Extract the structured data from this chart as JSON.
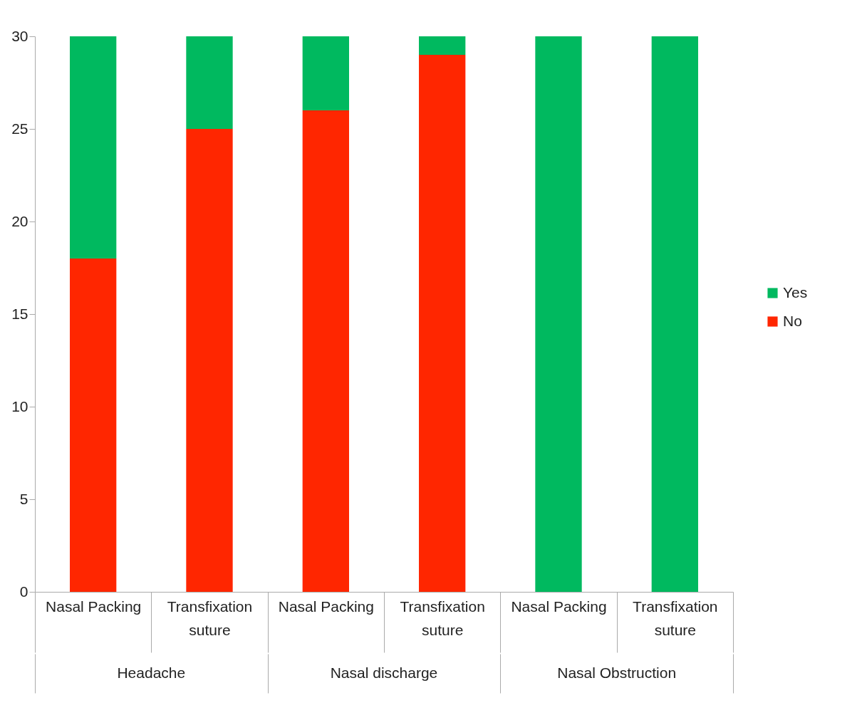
{
  "chart_data": {
    "type": "bar",
    "stacked": true,
    "categories": [
      "Nasal Packing",
      "Transfixation suture",
      "Nasal Packing",
      "Transfixation suture",
      "Nasal Packing",
      "Transfixation suture"
    ],
    "series": [
      {
        "name": "No",
        "color": "#ff2600",
        "values": [
          18,
          25,
          26,
          29,
          0,
          0
        ]
      },
      {
        "name": "Yes",
        "color": "#00b95f",
        "values": [
          12,
          5,
          4,
          1,
          30,
          30
        ]
      }
    ],
    "ylim": [
      0,
      30
    ],
    "yticks": [
      0,
      5,
      10,
      15,
      20,
      25,
      30
    ],
    "grid": false,
    "legend": "right",
    "annotations": [
      "Headache",
      "Nasal discharge",
      "Nasal Obstruction"
    ]
  }
}
